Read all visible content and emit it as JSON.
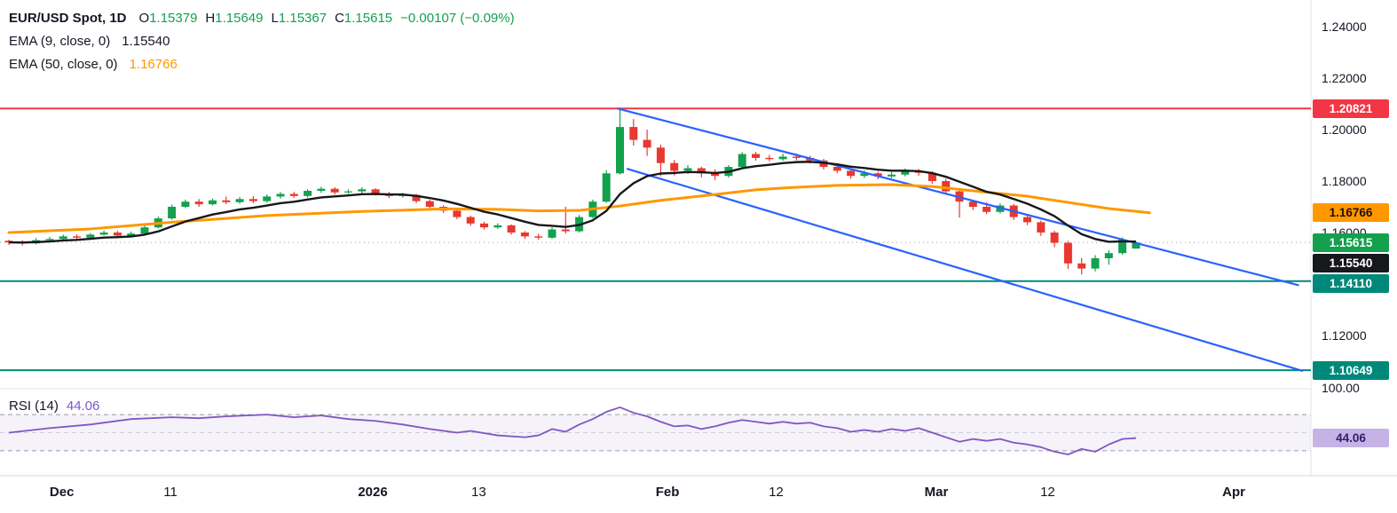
{
  "legend": {
    "symbol": "EUR/USD Spot, 1D",
    "ohlc": [
      {
        "prefix": "O",
        "value": "1.15379"
      },
      {
        "prefix": "H",
        "value": "1.15649"
      },
      {
        "prefix": "L",
        "value": "1.15367"
      },
      {
        "prefix": "C",
        "value": "1.15615"
      }
    ],
    "change": "−0.00107 (−0.09%)",
    "ema9": {
      "label": "EMA (9, close, 0)",
      "value": "1.15540"
    },
    "ema50": {
      "label": "EMA (50, close, 0)",
      "value": "1.16766"
    },
    "rsi": {
      "label": "RSI (14)",
      "value": "44.06"
    }
  },
  "colors": {
    "up": "#13a14e",
    "down": "#e8382f",
    "ema9": "#17181b",
    "ema50": "#ff9800",
    "rsi": "#7e57c2",
    "rsi_band": "rgba(126,87,194,0.08)",
    "resistance": "#f23645",
    "support": "#00897b",
    "channel": "#2962ff",
    "text": "#131722"
  },
  "chart_data": {
    "type": "candlestick",
    "symbol": "EUR/USD Spot",
    "interval": "1D",
    "ylim": [
      1.0993,
      1.2503
    ],
    "rsi_ylim": [
      0,
      100
    ],
    "last": {
      "open": 1.15379,
      "high": 1.15649,
      "low": 1.15367,
      "close": 1.15615,
      "change": -0.00107,
      "change_pct": -0.09
    },
    "ema9_value": 1.1554,
    "ema50_value": 1.16766,
    "rsi_value": 44.06,
    "candles": [
      [
        1.1568,
        1.1572,
        1.1552,
        1.1562
      ],
      [
        1.1562,
        1.157,
        1.155,
        1.1558
      ],
      [
        1.1558,
        1.1578,
        1.1554,
        1.157
      ],
      [
        1.157,
        1.1583,
        1.1565,
        1.1575
      ],
      [
        1.1575,
        1.1592,
        1.157,
        1.1585
      ],
      [
        1.1585,
        1.1593,
        1.1574,
        1.158
      ],
      [
        1.158,
        1.1598,
        1.1576,
        1.1592
      ],
      [
        1.1592,
        1.1608,
        1.1588,
        1.16
      ],
      [
        1.16,
        1.1606,
        1.158,
        1.1588
      ],
      [
        1.1588,
        1.1604,
        1.1584,
        1.1596
      ],
      [
        1.1596,
        1.1628,
        1.1592,
        1.162
      ],
      [
        1.162,
        1.1662,
        1.1616,
        1.1655
      ],
      [
        1.1655,
        1.1708,
        1.165,
        1.17
      ],
      [
        1.17,
        1.1728,
        1.1695,
        1.172
      ],
      [
        1.172,
        1.173,
        1.17,
        1.171
      ],
      [
        1.171,
        1.1732,
        1.1705,
        1.1725
      ],
      [
        1.1725,
        1.174,
        1.171,
        1.1718
      ],
      [
        1.1718,
        1.1738,
        1.1712,
        1.173
      ],
      [
        1.173,
        1.1742,
        1.1714,
        1.1722
      ],
      [
        1.1722,
        1.1748,
        1.1716,
        1.174
      ],
      [
        1.174,
        1.1757,
        1.1732,
        1.175
      ],
      [
        1.175,
        1.1758,
        1.1734,
        1.1742
      ],
      [
        1.1742,
        1.1768,
        1.1736,
        1.1762
      ],
      [
        1.1762,
        1.1778,
        1.1754,
        1.177
      ],
      [
        1.177,
        1.1776,
        1.1748,
        1.1756
      ],
      [
        1.1756,
        1.1768,
        1.175,
        1.176
      ],
      [
        1.176,
        1.1776,
        1.1752,
        1.1768
      ],
      [
        1.1768,
        1.1772,
        1.1744,
        1.1752
      ],
      [
        1.1752,
        1.1758,
        1.1734,
        1.1742
      ],
      [
        1.1742,
        1.1754,
        1.1736,
        1.1746
      ],
      [
        1.1746,
        1.175,
        1.1714,
        1.1722
      ],
      [
        1.1722,
        1.1728,
        1.1692,
        1.17
      ],
      [
        1.17,
        1.1706,
        1.1676,
        1.1685
      ],
      [
        1.1685,
        1.169,
        1.1652,
        1.166
      ],
      [
        1.166,
        1.1666,
        1.1626,
        1.1635
      ],
      [
        1.1635,
        1.1642,
        1.1612,
        1.162
      ],
      [
        1.162,
        1.1636,
        1.1614,
        1.1628
      ],
      [
        1.1628,
        1.1632,
        1.1592,
        1.16
      ],
      [
        1.16,
        1.1606,
        1.1576,
        1.1585
      ],
      [
        1.1585,
        1.1595,
        1.1572,
        1.158
      ],
      [
        1.158,
        1.162,
        1.1576,
        1.1612
      ],
      [
        1.1612,
        1.17,
        1.1596,
        1.1605
      ],
      [
        1.1605,
        1.1668,
        1.16,
        1.166
      ],
      [
        1.166,
        1.1728,
        1.1655,
        1.172
      ],
      [
        1.172,
        1.1842,
        1.1715,
        1.183
      ],
      [
        1.183,
        1.2082,
        1.1825,
        1.201
      ],
      [
        1.201,
        1.2041,
        1.1938,
        1.196
      ],
      [
        1.196,
        1.2,
        1.1898,
        1.193
      ],
      [
        1.193,
        1.1942,
        1.1818,
        1.187
      ],
      [
        1.187,
        1.1882,
        1.1822,
        1.184
      ],
      [
        1.184,
        1.1862,
        1.1828,
        1.185
      ],
      [
        1.185,
        1.1856,
        1.1814,
        1.183
      ],
      [
        1.183,
        1.1845,
        1.1804,
        1.182
      ],
      [
        1.182,
        1.1862,
        1.1814,
        1.1855
      ],
      [
        1.1855,
        1.1912,
        1.185,
        1.1905
      ],
      [
        1.1905,
        1.1913,
        1.188,
        1.189
      ],
      [
        1.189,
        1.1902,
        1.1877,
        1.1885
      ],
      [
        1.1885,
        1.1906,
        1.1879,
        1.1895
      ],
      [
        1.1895,
        1.1907,
        1.1881,
        1.189
      ],
      [
        1.189,
        1.1898,
        1.1868,
        1.188
      ],
      [
        1.188,
        1.1886,
        1.1845,
        1.1855
      ],
      [
        1.1855,
        1.1865,
        1.1831,
        1.184
      ],
      [
        1.184,
        1.1848,
        1.1809,
        1.182
      ],
      [
        1.182,
        1.1841,
        1.1812,
        1.183
      ],
      [
        1.183,
        1.1836,
        1.1807,
        1.1818
      ],
      [
        1.1818,
        1.1835,
        1.1811,
        1.1825
      ],
      [
        1.1825,
        1.1849,
        1.1818,
        1.184
      ],
      [
        1.184,
        1.1846,
        1.1821,
        1.1832
      ],
      [
        1.1832,
        1.1838,
        1.1789,
        1.18
      ],
      [
        1.18,
        1.1809,
        1.1747,
        1.176
      ],
      [
        1.176,
        1.1768,
        1.1658,
        1.172
      ],
      [
        1.172,
        1.1727,
        1.1687,
        1.17
      ],
      [
        1.17,
        1.1717,
        1.1671,
        1.168
      ],
      [
        1.168,
        1.1713,
        1.1674,
        1.1705
      ],
      [
        1.1705,
        1.1711,
        1.1649,
        1.166
      ],
      [
        1.166,
        1.1669,
        1.1629,
        1.164
      ],
      [
        1.164,
        1.1647,
        1.1587,
        1.16
      ],
      [
        1.16,
        1.1607,
        1.1543,
        1.156
      ],
      [
        1.156,
        1.1567,
        1.1459,
        1.148
      ],
      [
        1.148,
        1.1501,
        1.1437,
        1.146
      ],
      [
        1.146,
        1.1512,
        1.1449,
        1.15
      ],
      [
        1.15,
        1.1531,
        1.1475,
        1.152
      ],
      [
        1.152,
        1.1581,
        1.1514,
        1.15722
      ],
      [
        1.15379,
        1.15649,
        1.15367,
        1.15615
      ]
    ],
    "ema50_points": [
      [
        0,
        1.16
      ],
      [
        6,
        1.1614
      ],
      [
        12,
        1.164
      ],
      [
        19,
        1.1666
      ],
      [
        26,
        1.1682
      ],
      [
        32,
        1.1692
      ],
      [
        36,
        1.169
      ],
      [
        39,
        1.1684
      ],
      [
        42,
        1.1686
      ],
      [
        45,
        1.1703
      ],
      [
        48,
        1.1725
      ],
      [
        52,
        1.1748
      ],
      [
        55,
        1.1766
      ],
      [
        58,
        1.1776
      ],
      [
        61,
        1.1783
      ],
      [
        65,
        1.1786
      ],
      [
        68,
        1.1779
      ],
      [
        71,
        1.1762
      ],
      [
        75,
        1.1741
      ],
      [
        78,
        1.1717
      ],
      [
        81,
        1.1693
      ],
      [
        84,
        1.16766
      ]
    ],
    "rsi_points": [
      [
        0,
        50
      ],
      [
        3,
        55
      ],
      [
        6,
        59
      ],
      [
        9,
        65
      ],
      [
        12,
        67
      ],
      [
        14,
        66
      ],
      [
        16,
        68
      ],
      [
        19,
        70
      ],
      [
        21,
        67
      ],
      [
        23,
        69
      ],
      [
        25,
        65
      ],
      [
        27,
        63
      ],
      [
        29,
        59
      ],
      [
        31,
        54
      ],
      [
        33,
        50
      ],
      [
        34,
        52
      ],
      [
        36,
        47
      ],
      [
        38,
        45
      ],
      [
        39,
        47
      ],
      [
        40,
        54
      ],
      [
        41,
        51
      ],
      [
        42,
        59
      ],
      [
        43,
        65
      ],
      [
        44,
        73
      ],
      [
        45,
        78
      ],
      [
        46,
        72
      ],
      [
        47,
        68
      ],
      [
        48,
        62
      ],
      [
        49,
        57
      ],
      [
        50,
        58
      ],
      [
        51,
        54
      ],
      [
        52,
        57
      ],
      [
        53,
        61
      ],
      [
        54,
        64
      ],
      [
        55,
        62
      ],
      [
        56,
        60
      ],
      [
        57,
        62
      ],
      [
        58,
        60
      ],
      [
        59,
        61
      ],
      [
        60,
        57
      ],
      [
        61,
        55
      ],
      [
        62,
        51
      ],
      [
        63,
        53
      ],
      [
        64,
        51
      ],
      [
        65,
        54
      ],
      [
        66,
        52
      ],
      [
        67,
        55
      ],
      [
        68,
        50
      ],
      [
        69,
        45
      ],
      [
        70,
        40
      ],
      [
        71,
        43
      ],
      [
        72,
        41
      ],
      [
        73,
        43
      ],
      [
        74,
        39
      ],
      [
        75,
        37
      ],
      [
        76,
        34
      ],
      [
        77,
        29
      ],
      [
        78,
        26
      ],
      [
        79,
        32
      ],
      [
        80,
        29
      ],
      [
        81,
        37
      ],
      [
        82,
        43
      ],
      [
        83,
        44.06
      ]
    ],
    "rsi_bands": [
      70,
      50,
      30
    ],
    "h_lines": [
      {
        "name": "resistance-line",
        "price": 1.20821,
        "color": "#f23645",
        "style": "solid"
      },
      {
        "name": "support-line-1",
        "price": 1.1411,
        "color": "#00897b",
        "style": "solid"
      },
      {
        "name": "support-line-2",
        "price": 1.10649,
        "color": "#00897b",
        "style": "solid"
      },
      {
        "name": "last-price-line",
        "price": 1.15615,
        "color": "#9598a1",
        "style": "dotted"
      }
    ],
    "trend_lines": [
      {
        "name": "channel-upper-line",
        "from": [
          44.8,
          1.2082
        ],
        "to": [
          95,
          1.1395
        ],
        "color": "#2962ff"
      },
      {
        "name": "channel-lower-line",
        "from": [
          45.5,
          1.1848
        ],
        "to": [
          95.3,
          1.1062
        ],
        "color": "#2962ff"
      }
    ]
  },
  "price_axis": {
    "ticks": [
      {
        "label": "1.24000",
        "price": 1.24
      },
      {
        "label": "1.22000",
        "price": 1.22
      },
      {
        "label": "1.20000",
        "price": 1.2
      },
      {
        "label": "1.18000",
        "price": 1.18
      },
      {
        "label": "1.16000",
        "price": 1.16
      },
      {
        "label": "1.12000",
        "price": 1.12
      },
      {
        "label": "100.00",
        "rsi": 100
      }
    ],
    "badges": [
      {
        "name": "resistance-price-badge",
        "label": "1.20821",
        "price": 1.20821,
        "bg": "#f23645",
        "fg": "#ffffff"
      },
      {
        "name": "ema50-price-badge",
        "label": "1.16766",
        "price": 1.16766,
        "bg": "#ff9800",
        "fg": "#1e1007"
      },
      {
        "name": "last-price-badge",
        "label": "1.15615",
        "price": 1.15615,
        "bg": "#13a14e",
        "fg": "#ffffff"
      },
      {
        "name": "ema9-price-badge",
        "label": "1.15540",
        "price": 1.1554,
        "bg": "#17181b",
        "fg": "#ffffff"
      },
      {
        "name": "support1-price-badge",
        "label": "1.14110",
        "price": 1.1411,
        "bg": "#00897b",
        "fg": "#ffffff"
      },
      {
        "name": "support2-price-badge",
        "label": "1.10649",
        "price": 1.10649,
        "bg": "#00897b",
        "fg": "#ffffff"
      },
      {
        "name": "rsi-value-badge",
        "label": "44.06",
        "rsi": 44.06,
        "bg": "#c5b3e6",
        "fg": "#31206e"
      }
    ]
  },
  "time_axis": {
    "labels": [
      {
        "text": "Dec",
        "i": 3.9,
        "bold": true
      },
      {
        "text": "11",
        "i": 11.9,
        "bold": false
      },
      {
        "text": "2026",
        "i": 26.8,
        "bold": true
      },
      {
        "text": "13",
        "i": 34.6,
        "bold": false
      },
      {
        "text": "Feb",
        "i": 48.5,
        "bold": true
      },
      {
        "text": "12",
        "i": 56.5,
        "bold": false
      },
      {
        "text": "Mar",
        "i": 68.3,
        "bold": true
      },
      {
        "text": "12",
        "i": 76.5,
        "bold": false
      },
      {
        "text": "Apr",
        "i": 90.2,
        "bold": true
      }
    ]
  }
}
